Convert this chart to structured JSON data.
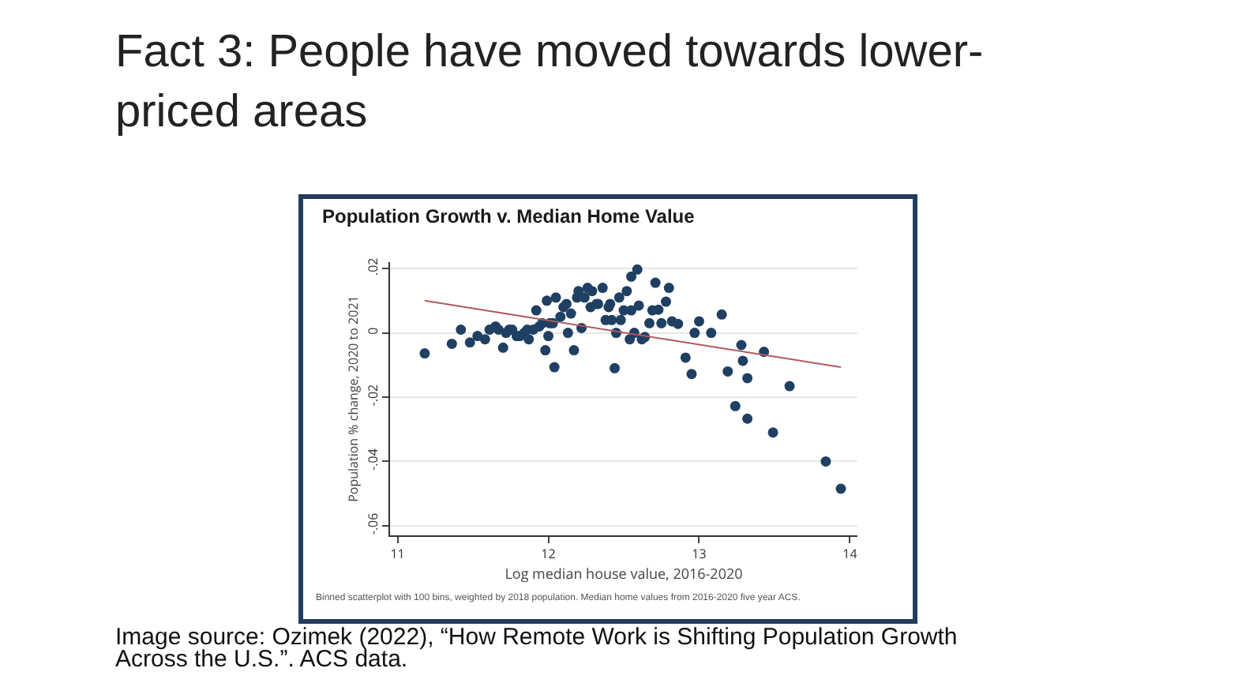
{
  "chart_data": {
    "type": "scatter",
    "title": "Fact 3: People have moved towards lower-priced areas",
    "subtitle": "Population Growth v. Median Home Value",
    "xlabel": "Log median house value, 2016-2020",
    "ylabel": "Population % change, 2020 to 2021",
    "annotations": [
      "Binned scatterplot with 100 bins, weighted by 2018 population. Median home values from 2016-2020 five year ACS.",
      "Image source: Ozimek (2022), “How Remote Work is Shifting Population Growth Across the U.S.”. ACS data."
    ],
    "xlim": [
      10.95,
      14.05
    ],
    "xticks": [
      11,
      12,
      13,
      14
    ],
    "ylim": [
      -0.063,
      0.022
    ],
    "yticks": [
      {
        "value": 0.02,
        "label": ".02"
      },
      {
        "value": 0,
        "label": "0"
      },
      {
        "value": -0.02,
        "label": "-.02"
      },
      {
        "value": -0.04,
        "label": "-.04"
      },
      {
        "value": -0.06,
        "label": "-.06"
      }
    ],
    "grid": "y",
    "marker": "circle",
    "series": [
      {
        "color": "#1f3f63",
        "x": [
          11.18,
          11.36,
          11.42,
          11.48,
          11.53,
          11.58,
          11.61,
          11.65,
          11.67,
          11.7,
          11.72,
          11.74,
          11.76,
          11.79,
          11.81,
          11.84,
          11.86,
          11.87,
          11.9,
          11.92,
          11.94,
          11.96,
          11.98,
          12.0,
          12.01,
          11.99,
          12.03,
          12.04,
          12.05,
          12.08,
          12.1,
          12.12,
          12.13,
          12.15,
          12.17,
          12.19,
          12.2,
          12.22,
          12.24,
          12.26,
          12.28,
          12.29,
          12.32,
          12.33,
          12.36,
          12.38,
          12.4,
          12.41,
          12.42,
          12.44,
          12.45,
          12.47,
          12.48,
          12.5,
          12.52,
          12.54,
          12.55,
          12.55,
          12.57,
          12.59,
          12.6,
          12.62,
          12.64,
          12.67,
          12.69,
          12.71,
          12.73,
          12.75,
          12.78,
          12.8,
          12.82,
          12.86,
          12.91,
          12.95,
          12.97,
          13.0,
          13.08,
          13.15,
          13.19,
          13.24,
          13.28,
          13.29,
          13.32,
          13.32,
          13.43,
          13.49,
          13.6,
          13.84,
          13.94
        ],
        "values": [
          -0.0064,
          -0.0034,
          0.001,
          -0.003,
          -0.001,
          -0.002,
          0.001,
          0.002,
          0.001,
          -0.0046,
          0.0,
          0.001,
          0.001,
          -0.001,
          -0.001,
          0.0,
          0.001,
          -0.002,
          0.001,
          0.007,
          0.002,
          0.003,
          -0.0054,
          -0.001,
          0.003,
          0.01,
          0.003,
          -0.0107,
          0.011,
          0.005,
          0.008,
          0.009,
          0.0,
          0.006,
          -0.0054,
          0.011,
          0.013,
          0.0015,
          0.011,
          0.014,
          0.008,
          0.013,
          0.009,
          0.009,
          0.014,
          0.004,
          0.008,
          0.009,
          0.004,
          -0.011,
          0.0,
          0.011,
          0.004,
          0.007,
          0.013,
          -0.002,
          0.0175,
          0.007,
          0.0,
          0.0197,
          0.0085,
          -0.002,
          -0.0013,
          0.003,
          0.007,
          0.0156,
          0.0072,
          0.003,
          0.0097,
          0.014,
          0.0036,
          0.0028,
          -0.0077,
          -0.0128,
          0.0,
          0.0036,
          0.0,
          0.0057,
          -0.012,
          -0.0228,
          -0.0038,
          -0.0087,
          -0.0141,
          -0.0267,
          -0.0059,
          -0.031,
          -0.0166,
          -0.04,
          -0.0485
        ]
      },
      {
        "type": "line",
        "color": "#b05a5a",
        "marker": "none",
        "x": [
          11.18,
          13.94
        ],
        "values": [
          0.01,
          -0.0107
        ]
      }
    ]
  }
}
